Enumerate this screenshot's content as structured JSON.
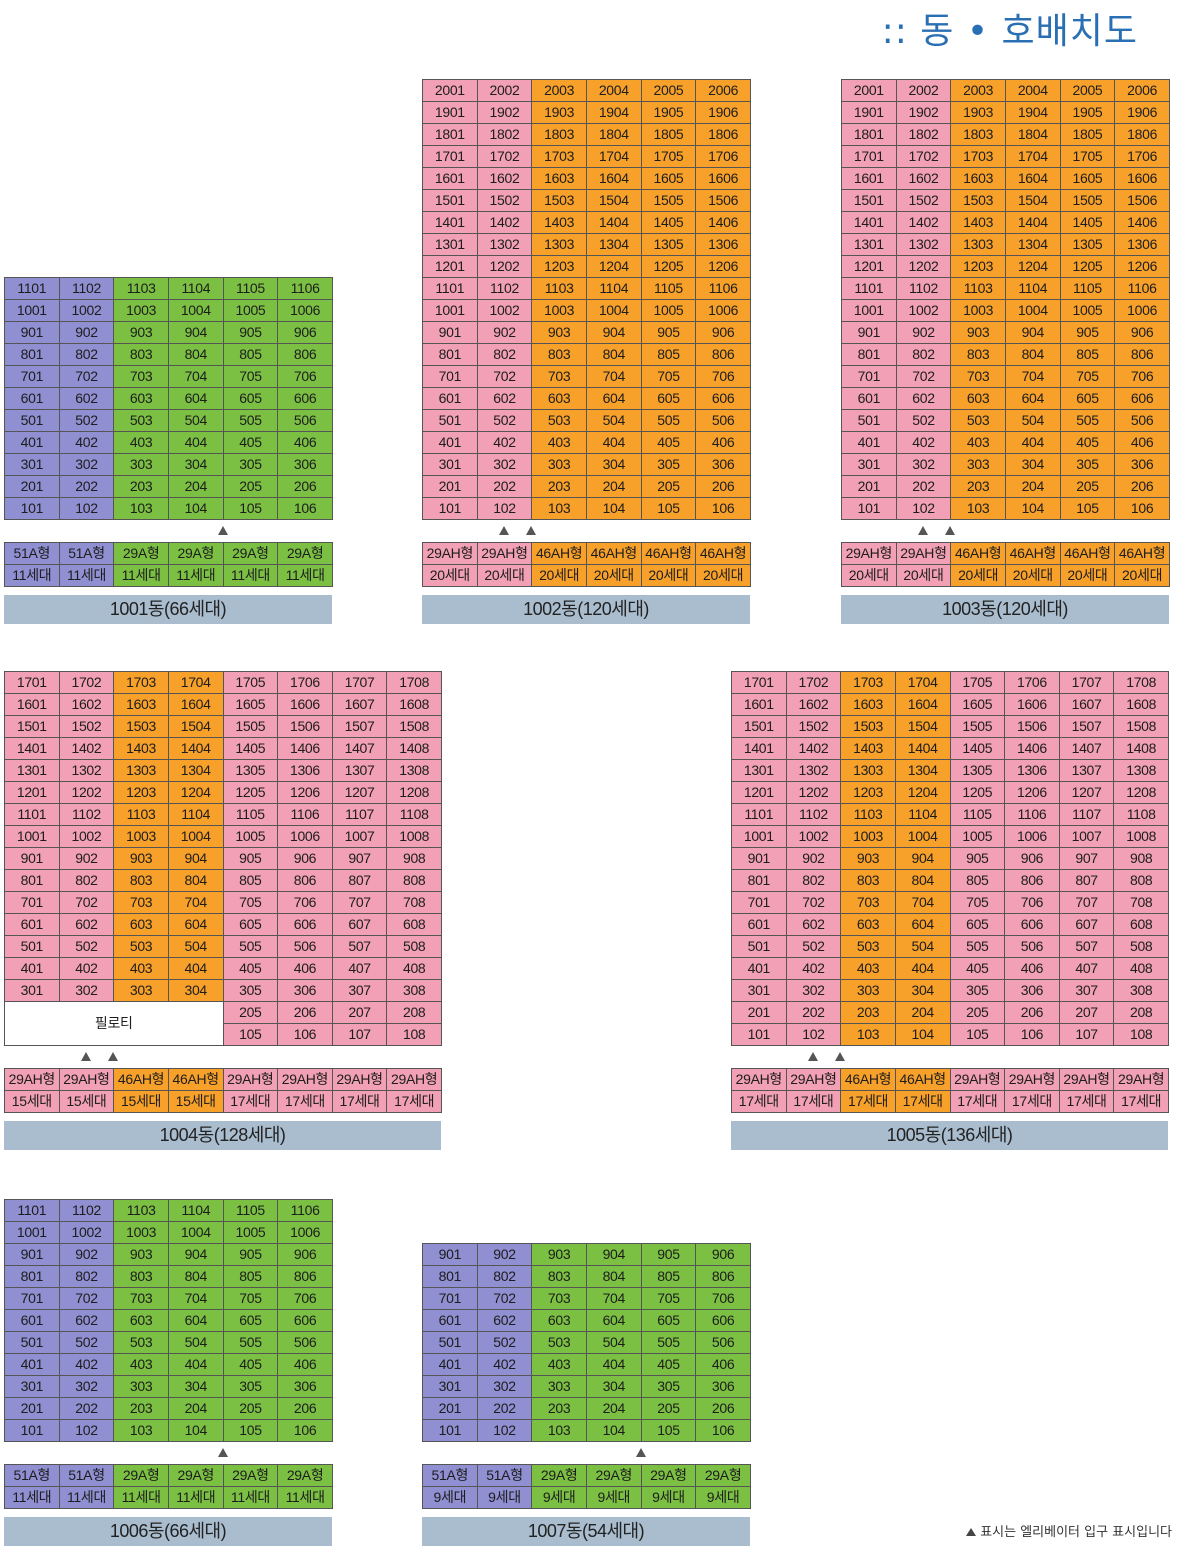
{
  "title": ":: 동 • 호배치도",
  "colors": {
    "pink": "#f1a0b5",
    "orange": "#f8a12a",
    "purple": "#8f8fd1",
    "green": "#7bc043",
    "caption_bg": "#a9bdcf"
  },
  "pilotis_label": "필로티",
  "footnote": "표시는 엘리베이터 입구 표시입니다",
  "buildings": [
    {
      "id": "1001",
      "caption": "1001동(66세대)",
      "floors": 11,
      "min_floor": 1,
      "units": 6,
      "colors": [
        "v",
        "v",
        "g",
        "g",
        "g",
        "g"
      ],
      "types": [
        "51A형",
        "51A형",
        "29A형",
        "29A형",
        "29A형",
        "29A형"
      ],
      "counts": [
        "11세대",
        "11세대",
        "11세대",
        "11세대",
        "11세대",
        "11세대"
      ],
      "elevators": [
        4
      ]
    },
    {
      "id": "1002",
      "caption": "1002동(120세대)",
      "floors": 20,
      "min_floor": 1,
      "units": 6,
      "colors": [
        "p",
        "p",
        "o",
        "o",
        "o",
        "o"
      ],
      "types": [
        "29AH형",
        "29AH형",
        "46AH형",
        "46AH형",
        "46AH형",
        "46AH형"
      ],
      "counts": [
        "20세대",
        "20세대",
        "20세대",
        "20세대",
        "20세대",
        "20세대"
      ],
      "elevators": [
        1.5,
        2
      ]
    },
    {
      "id": "1003",
      "caption": "1003동(120세대)",
      "floors": 20,
      "min_floor": 1,
      "units": 6,
      "colors": [
        "p",
        "p",
        "o",
        "o",
        "o",
        "o"
      ],
      "types": [
        "29AH형",
        "29AH형",
        "46AH형",
        "46AH형",
        "46AH형",
        "46AH형"
      ],
      "counts": [
        "20세대",
        "20세대",
        "20세대",
        "20세대",
        "20세대",
        "20세대"
      ],
      "elevators": [
        1.5,
        2
      ]
    },
    {
      "id": "1004",
      "caption": "1004동(128세대)",
      "floors": 17,
      "min_floor": 1,
      "units": 8,
      "colors": [
        "p",
        "p",
        "o",
        "o",
        "p",
        "p",
        "p",
        "p"
      ],
      "types": [
        "29AH형",
        "29AH형",
        "46AH형",
        "46AH형",
        "29AH형",
        "29AH형",
        "29AH형",
        "29AH형"
      ],
      "counts": [
        "15세대",
        "15세대",
        "15세대",
        "15세대",
        "17세대",
        "17세대",
        "17세대",
        "17세대"
      ],
      "pilotis": {
        "floors_from": 1,
        "floors_to": 2,
        "units_from": 1,
        "units_to": 4
      },
      "elevators": [
        1.5,
        2
      ]
    },
    {
      "id": "1005",
      "caption": "1005동(136세대)",
      "floors": 17,
      "min_floor": 1,
      "units": 8,
      "colors": [
        "p",
        "p",
        "o",
        "o",
        "p",
        "p",
        "p",
        "p"
      ],
      "types": [
        "29AH형",
        "29AH형",
        "46AH형",
        "46AH형",
        "29AH형",
        "29AH형",
        "29AH형",
        "29AH형"
      ],
      "counts": [
        "17세대",
        "17세대",
        "17세대",
        "17세대",
        "17세대",
        "17세대",
        "17세대",
        "17세대"
      ],
      "elevators": [
        1.5,
        2
      ]
    },
    {
      "id": "1006",
      "caption": "1006동(66세대)",
      "floors": 11,
      "min_floor": 1,
      "units": 6,
      "colors": [
        "v",
        "v",
        "g",
        "g",
        "g",
        "g"
      ],
      "types": [
        "51A형",
        "51A형",
        "29A형",
        "29A형",
        "29A형",
        "29A형"
      ],
      "counts": [
        "11세대",
        "11세대",
        "11세대",
        "11세대",
        "11세대",
        "11세대"
      ],
      "elevators": [
        4
      ]
    },
    {
      "id": "1007",
      "caption": "1007동(54세대)",
      "floors": 9,
      "min_floor": 1,
      "units": 6,
      "colors": [
        "v",
        "v",
        "g",
        "g",
        "g",
        "g"
      ],
      "types": [
        "51A형",
        "51A형",
        "29A형",
        "29A형",
        "29A형",
        "29A형"
      ],
      "counts": [
        "9세대",
        "9세대",
        "9세대",
        "9세대",
        "9세대",
        "9세대"
      ],
      "elevators": [
        4
      ]
    }
  ]
}
